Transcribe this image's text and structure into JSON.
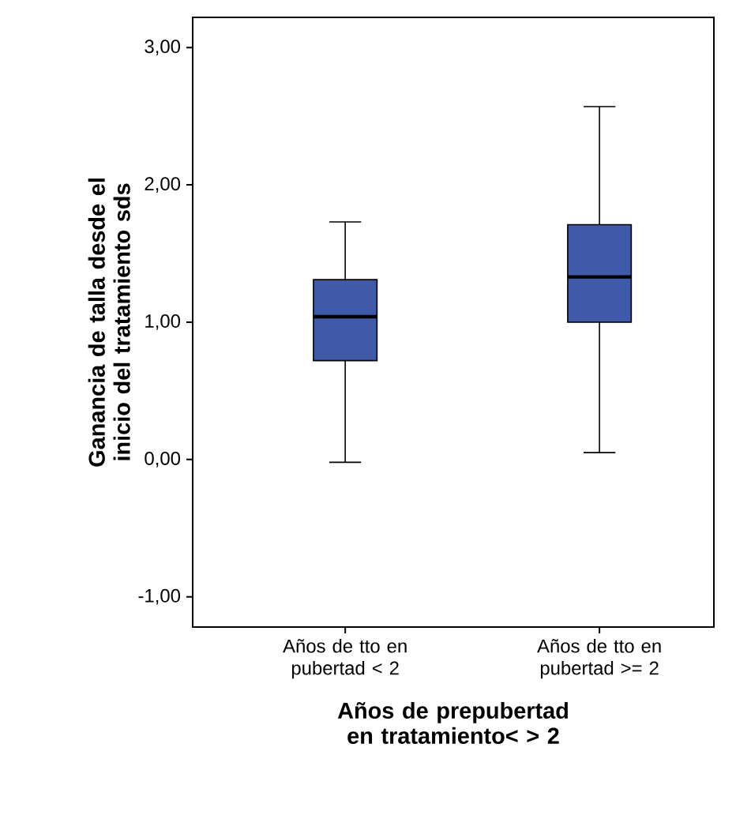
{
  "chart_data": {
    "type": "box",
    "xlabel": "Años de prepubertad en tratamiento< > 2",
    "ylabel": "Ganancia de talla desde el inicio del tratamiento sds",
    "categories": [
      "Años de tto en pubertad < 2",
      "Años de tto en pubertad >= 2"
    ],
    "color": "#3f5aa8",
    "boxes": [
      {
        "low": -0.02,
        "q1": 0.72,
        "median": 1.04,
        "q3": 1.31,
        "high": 1.73
      },
      {
        "low": 0.05,
        "q1": 1.0,
        "median": 1.33,
        "q3": 1.71,
        "high": 2.57
      }
    ],
    "ylim": [
      -1.22,
      3.22
    ],
    "yticks": [
      {
        "value": -1,
        "label": "-1,00"
      },
      {
        "value": 0,
        "label": "0,00"
      },
      {
        "value": 1,
        "label": "1,00"
      },
      {
        "value": 2,
        "label": "2,00"
      },
      {
        "value": 3,
        "label": "3,00"
      }
    ]
  }
}
